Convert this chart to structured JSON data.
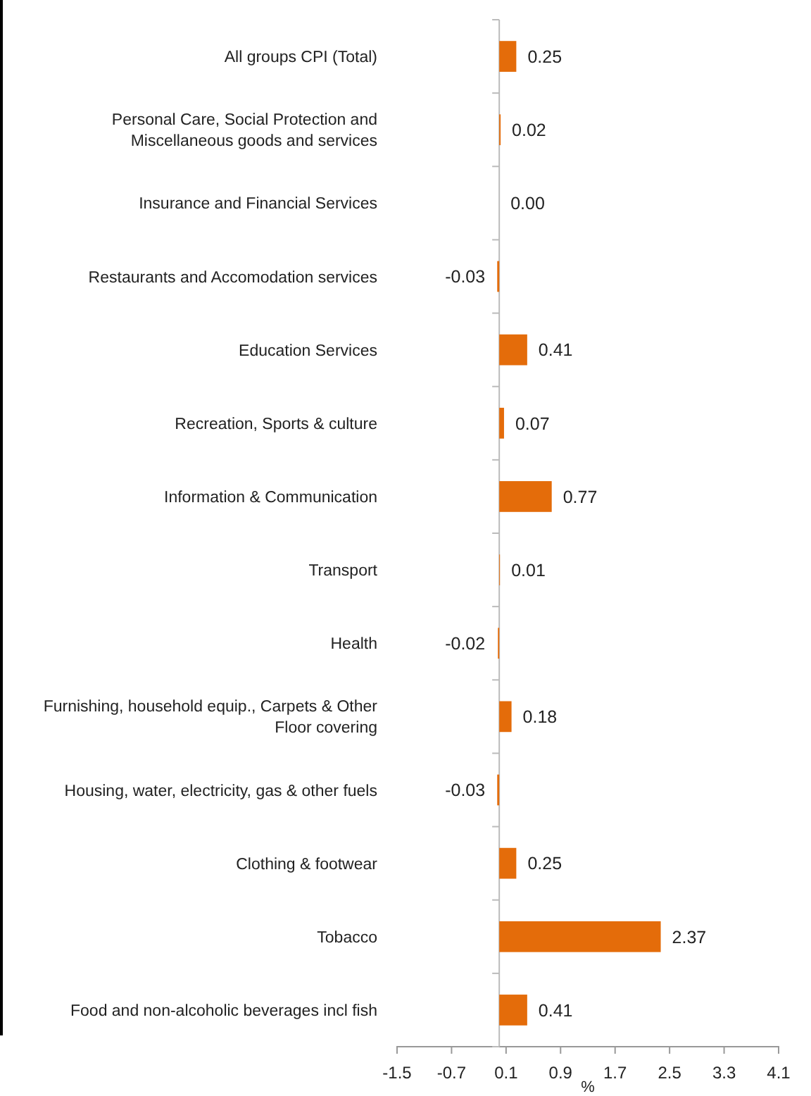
{
  "chart_data": {
    "type": "bar",
    "orientation": "horizontal",
    "xlabel": "%",
    "categories": [
      "All groups CPI (Total)",
      "Personal Care, Social Protection and Miscellaneous goods and services",
      "Insurance and Financial Services",
      "Restaurants and Accomodation services",
      "Education Services",
      "Recreation, Sports & culture",
      "Information & Communication",
      "Transport",
      "Health",
      "Furnishing, household equip., Carpets & Other Floor covering",
      "Housing, water, electricity, gas & other fuels",
      "Clothing & footwear",
      "Tobacco",
      "Food and non-alcoholic beverages incl fish"
    ],
    "values": [
      0.25,
      0.02,
      0.0,
      -0.03,
      0.41,
      0.07,
      0.77,
      0.01,
      -0.02,
      0.18,
      -0.03,
      0.25,
      2.37,
      0.41
    ],
    "value_labels": [
      "0.25",
      "0.02",
      "0.00",
      "-0.03",
      "0.41",
      "0.07",
      "0.77",
      "0.01",
      "-0.02",
      "0.18",
      "-0.03",
      "0.25",
      "2.37",
      "0.41"
    ],
    "color": "#e46c0a",
    "xlim": [
      -1.5,
      4.1
    ],
    "xticks": [
      -1.5,
      -0.7,
      0.1,
      0.9,
      1.7,
      2.5,
      3.3,
      4.1
    ],
    "grid": false
  }
}
